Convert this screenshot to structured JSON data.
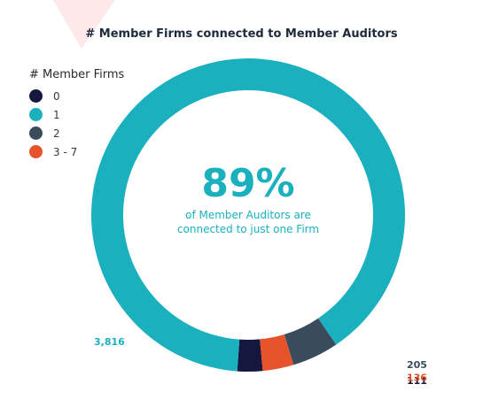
{
  "chart_data": {
    "type": "pie",
    "title": "# Member Firms connected to Member Auditors",
    "legend_title": "# Member Firms",
    "legend_position": "top-left",
    "center_text": {
      "big": "89%",
      "line1": "of Member Auditors are",
      "line2": "connected to just one Firm"
    },
    "slices": [
      {
        "label": "0",
        "value": 111,
        "value_label": "111",
        "color": "#15173f"
      },
      {
        "label": "3 - 7",
        "value": 136,
        "value_label": "136",
        "color": "#e6522a"
      },
      {
        "label": "2",
        "value": 205,
        "value_label": "205",
        "color": "#3a4c5c"
      },
      {
        "label": "1",
        "value": 3816,
        "value_label": "3,816",
        "color": "#1ab0bd"
      }
    ],
    "legend_order": [
      "0",
      "1",
      "2",
      "3 - 7"
    ]
  },
  "decor": {
    "triangle_color": "#fde9e9"
  }
}
